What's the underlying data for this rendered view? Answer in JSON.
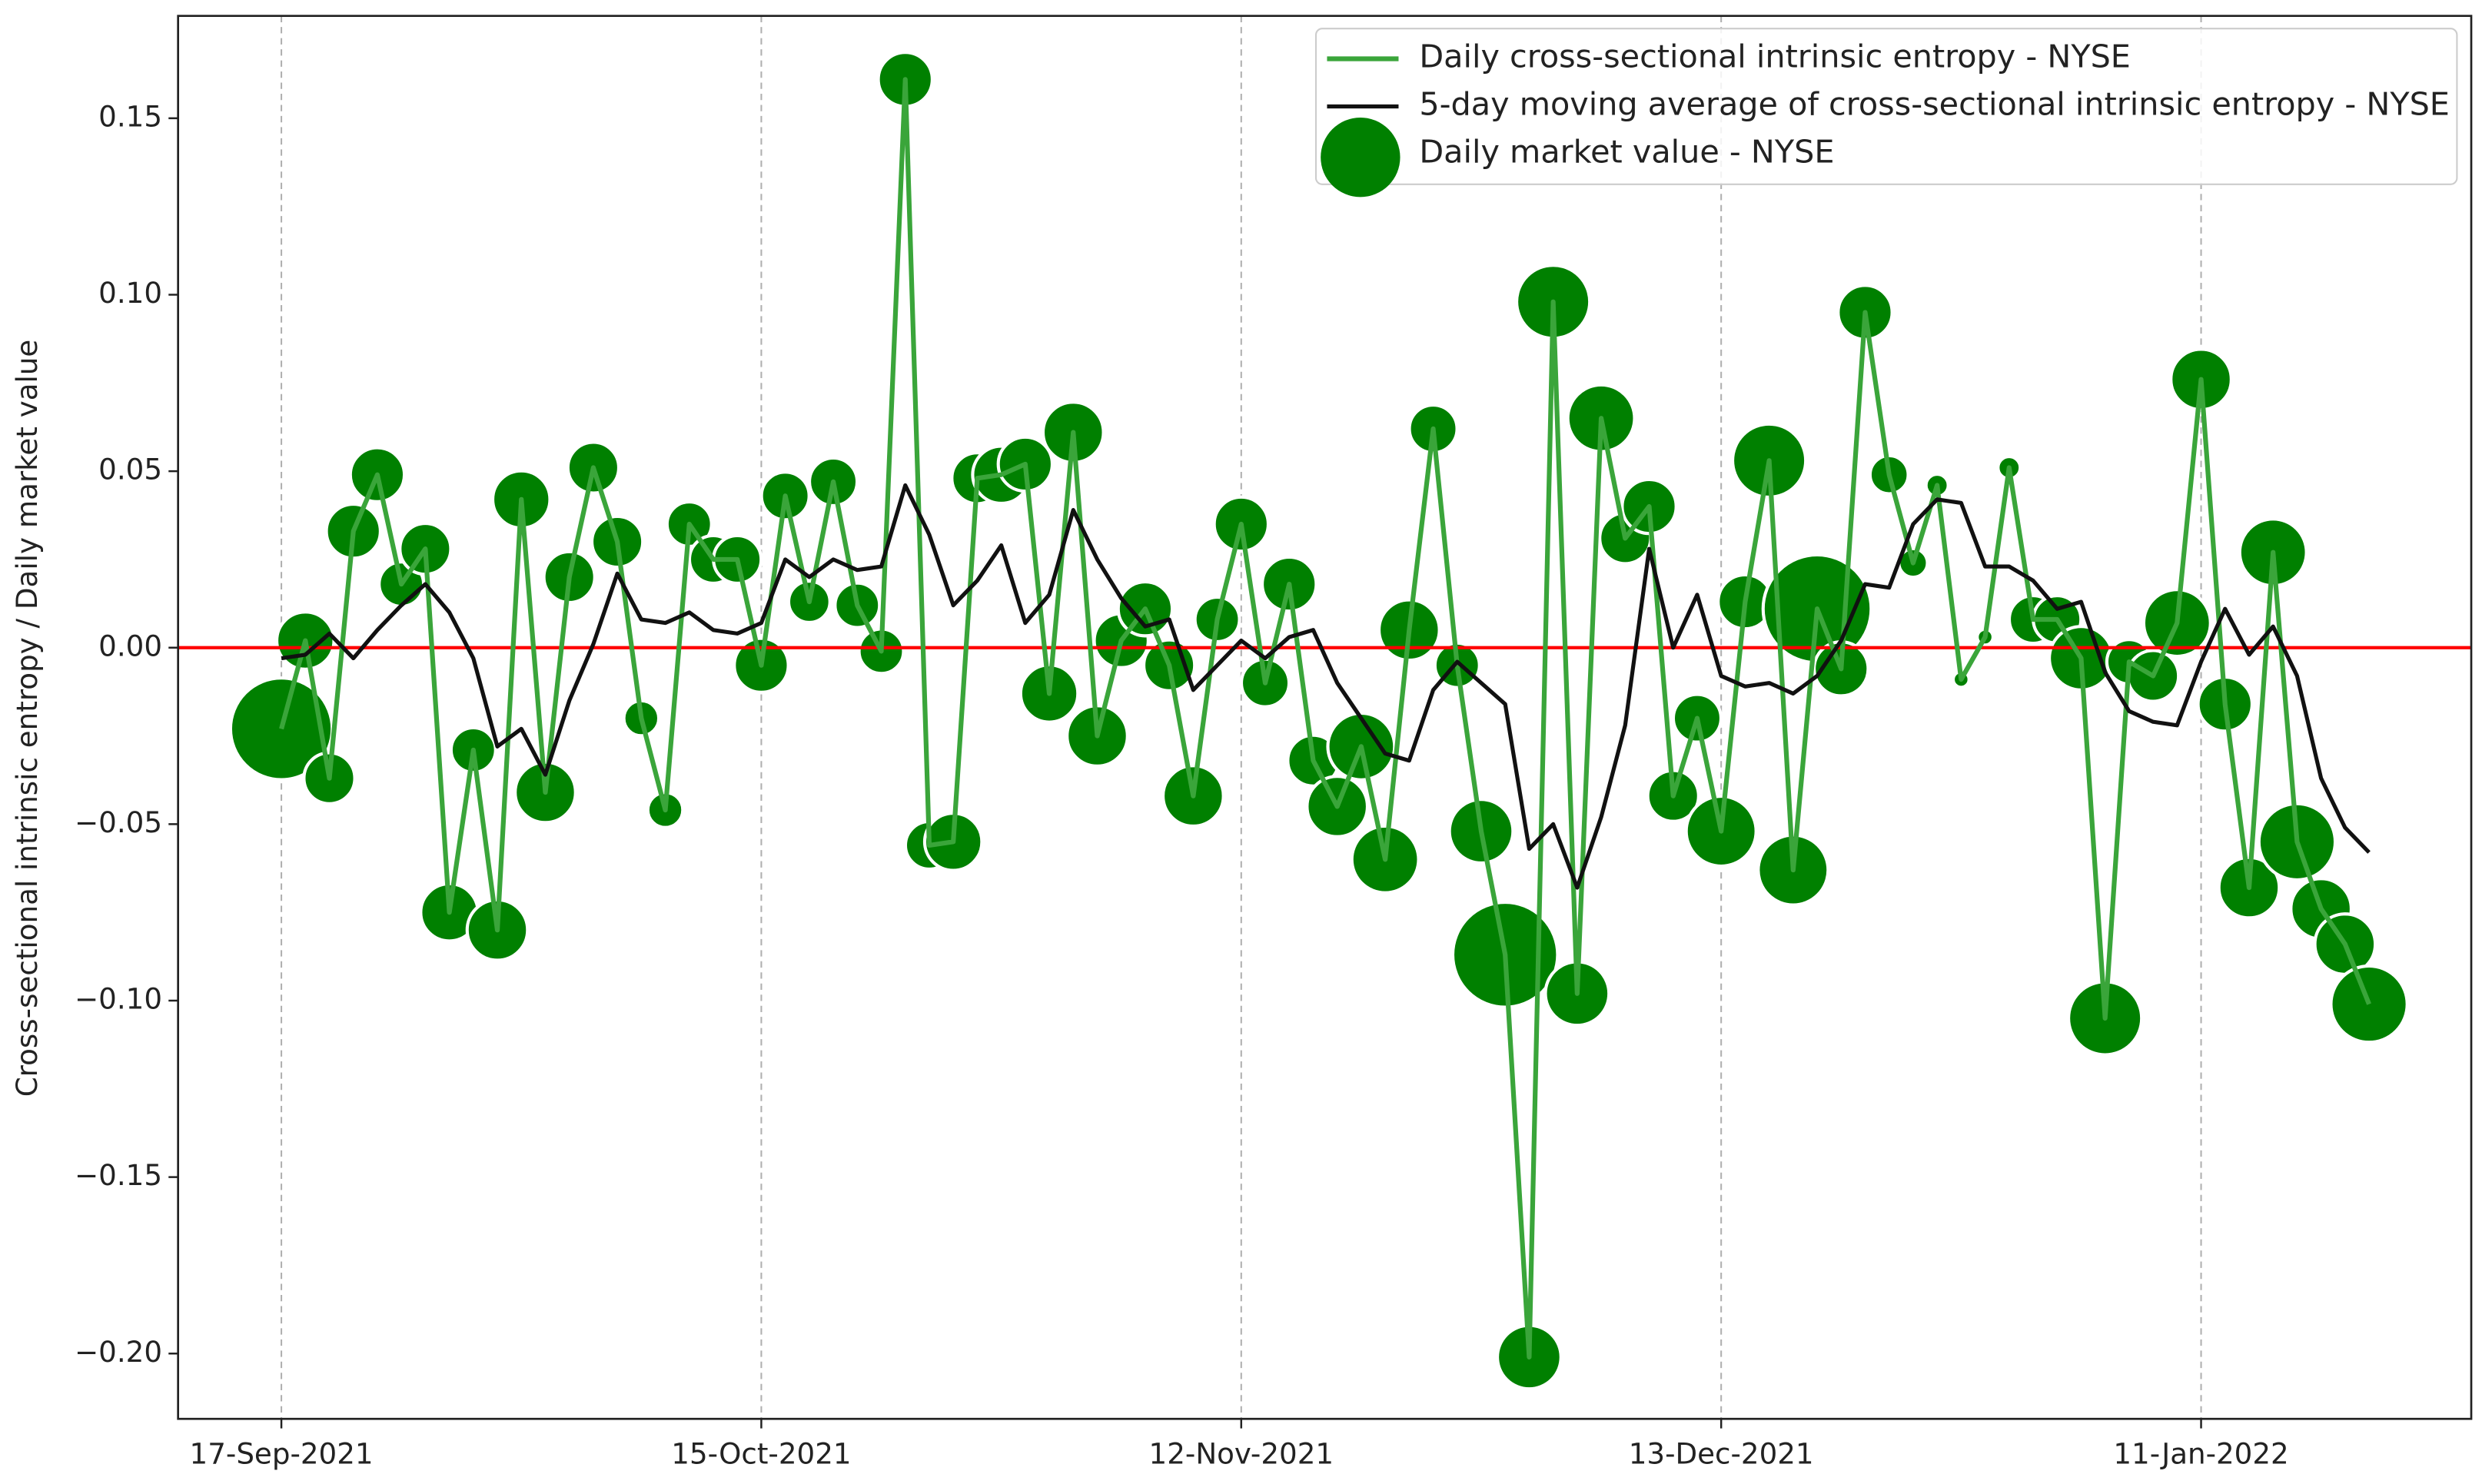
{
  "chart_data": {
    "type": "line",
    "ylabel": "Cross-sectional intrinsic entropy / Daily market value",
    "categories": [
      "17-Sep-2021",
      null,
      null,
      null,
      null,
      null,
      null,
      null,
      null,
      null,
      null,
      null,
      null,
      null,
      null,
      null,
      null,
      null,
      null,
      null,
      "15-Oct-2021",
      null,
      null,
      null,
      null,
      null,
      null,
      null,
      null,
      null,
      null,
      null,
      null,
      null,
      null,
      null,
      null,
      null,
      null,
      null,
      "12-Nov-2021",
      null,
      null,
      null,
      null,
      null,
      null,
      null,
      null,
      null,
      null,
      null,
      null,
      null,
      null,
      null,
      null,
      null,
      null,
      null,
      "13-Dec-2021",
      null,
      null,
      null,
      null,
      null,
      null,
      null,
      null,
      null,
      null,
      null,
      null,
      null,
      null,
      null,
      null,
      null,
      null,
      null,
      "11-Jan-2022",
      null,
      null,
      null,
      null,
      null,
      null,
      null
    ],
    "ylim": [
      -0.2185,
      0.179
    ],
    "yticks": [
      {
        "value": -0.2,
        "label": "−0.20"
      },
      {
        "value": -0.15,
        "label": "−0.15"
      },
      {
        "value": -0.1,
        "label": "−0.10"
      },
      {
        "value": -0.05,
        "label": "−0.05"
      },
      {
        "value": 0,
        "label": "0.00"
      },
      {
        "value": 0.05,
        "label": "0.05"
      },
      {
        "value": 0.1,
        "label": "0.10"
      },
      {
        "value": 0.15,
        "label": "0.15"
      }
    ],
    "xgrid": true,
    "hline": {
      "value": 0,
      "color": "#ff0000"
    },
    "legend": "upper right",
    "series": [
      {
        "name": "Daily cross-sectional intrinsic entropy - NYSE",
        "color": "#3aa53a",
        "values": [
          -0.023,
          0.002,
          -0.037,
          0.033,
          0.049,
          0.018,
          0.028,
          -0.075,
          -0.029,
          -0.08,
          0.042,
          -0.041,
          0.02,
          0.051,
          0.03,
          -0.02,
          -0.046,
          0.035,
          0.025,
          0.025,
          -0.005,
          0.043,
          0.013,
          0.047,
          0.012,
          -0.001,
          0.161,
          -0.056,
          -0.055,
          0.048,
          0.049,
          0.052,
          -0.013,
          0.061,
          -0.025,
          0.002,
          0.011,
          -0.005,
          -0.042,
          0.008,
          0.035,
          -0.01,
          0.018,
          -0.032,
          -0.045,
          -0.028,
          -0.06,
          0.005,
          0.062,
          -0.005,
          -0.052,
          -0.087,
          -0.201,
          0.098,
          -0.098,
          0.065,
          0.031,
          0.04,
          -0.042,
          -0.02,
          -0.052,
          0.013,
          0.053,
          -0.063,
          0.011,
          -0.006,
          0.095,
          0.049,
          0.024,
          0.046,
          -0.009,
          0.003,
          0.051,
          0.008,
          0.008,
          -0.003,
          -0.105,
          -0.004,
          -0.008,
          0.007,
          0.076,
          -0.016,
          -0.068,
          0.027,
          -0.055,
          -0.074,
          -0.084,
          -0.101
        ]
      },
      {
        "name": "5-day moving average of cross-sectional intrinsic entropy - NYSE",
        "color": "#111111",
        "values": [
          -0.003,
          -0.002,
          0.004,
          -0.003,
          0.005,
          0.012,
          0.018,
          0.01,
          -0.003,
          -0.028,
          -0.023,
          -0.036,
          -0.015,
          0.001,
          0.021,
          0.008,
          0.007,
          0.01,
          0.005,
          0.004,
          0.007,
          0.025,
          0.02,
          0.025,
          0.022,
          0.023,
          0.046,
          0.032,
          0.012,
          0.019,
          0.029,
          0.007,
          0.015,
          0.039,
          0.025,
          0.014,
          0.006,
          0.008,
          -0.012,
          -0.005,
          0.002,
          -0.003,
          0.003,
          0.005,
          -0.01,
          -0.02,
          -0.03,
          -0.032,
          -0.012,
          -0.004,
          -0.01,
          -0.016,
          -0.057,
          -0.05,
          -0.068,
          -0.048,
          -0.022,
          0.028,
          0.0,
          0.015,
          -0.008,
          -0.011,
          -0.01,
          -0.013,
          -0.008,
          0.002,
          0.018,
          0.017,
          0.035,
          0.042,
          0.041,
          0.023,
          0.023,
          0.019,
          0.011,
          0.013,
          -0.007,
          -0.018,
          -0.021,
          -0.022,
          -0.004,
          0.011,
          -0.002,
          0.006,
          -0.008,
          -0.037,
          -0.051,
          -0.058
        ]
      },
      {
        "name": "Daily market value - NYSE",
        "color": "#008000",
        "sizes": [
          32,
          18,
          16,
          17,
          17,
          14,
          16,
          18,
          14,
          19,
          18,
          19,
          16,
          16,
          16,
          11,
          11,
          14,
          15,
          15,
          17,
          15,
          13,
          15,
          14,
          14,
          17,
          15,
          18,
          16,
          18,
          17,
          18,
          19,
          19,
          17,
          17,
          16,
          19,
          14,
          17,
          15,
          17,
          16,
          19,
          21,
          21,
          19,
          15,
          14,
          20,
          33,
          20,
          23,
          20,
          21,
          16,
          17,
          16,
          15,
          22,
          17,
          23,
          22,
          34,
          17,
          17,
          12,
          9,
          7,
          5,
          5,
          7,
          15,
          15,
          20,
          23,
          14,
          16,
          21,
          19,
          17,
          19,
          21,
          24,
          19,
          19,
          24
        ]
      }
    ]
  }
}
